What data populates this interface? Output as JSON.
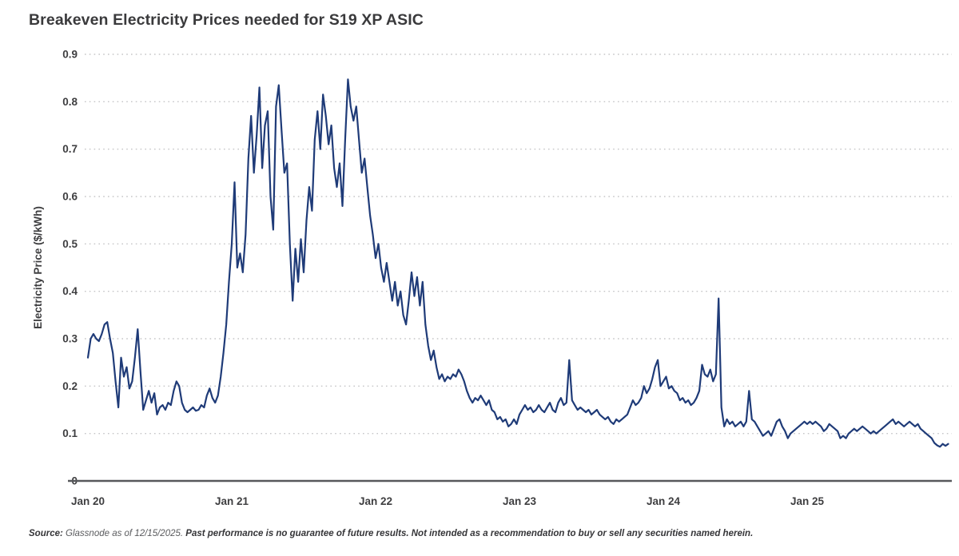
{
  "title": "Breakeven Electricity Prices needed for S19 XP ASIC",
  "source_note": {
    "prefix": "Source:",
    "attribution": " Glassnode as of 12/15/2025. ",
    "disclaimer": "Past performance is no guarantee of future results. Not intended as a recommendation to buy or sell any securities named herein."
  },
  "colors": {
    "line": "#1f3b78",
    "title_text": "#3a3a3c",
    "tick_label": "#3e3e40",
    "grid": "#c5c5c7",
    "axis": "#57585b"
  },
  "chart_data": {
    "type": "line",
    "title": "Breakeven Electricity Prices needed for S19 XP ASIC",
    "xlabel": "",
    "ylabel": "Electricity Price ($/kWh)",
    "ylim": [
      0,
      0.9
    ],
    "y_ticks": [
      0,
      0.1,
      0.2,
      0.3,
      0.4,
      0.5,
      0.6,
      0.7,
      0.8,
      0.9
    ],
    "x_tick_labels": [
      "Jan 20",
      "Jan 21",
      "Jan 22",
      "Jan 23",
      "Jan 24",
      "Jan 25"
    ],
    "x_start_label": "Jan 2020",
    "x_end_label": "Dec 2025",
    "points_per_year": 52,
    "grid": "horizontal-dotted",
    "legend_position": "none",
    "series": [
      {
        "name": "S19 XP ASIC breakeven electricity price",
        "unit": "$/kWh",
        "values": [
          0.26,
          0.3,
          0.31,
          0.3,
          0.295,
          0.31,
          0.33,
          0.335,
          0.3,
          0.27,
          0.21,
          0.155,
          0.26,
          0.22,
          0.24,
          0.195,
          0.21,
          0.26,
          0.32,
          0.23,
          0.15,
          0.17,
          0.19,
          0.165,
          0.185,
          0.14,
          0.155,
          0.16,
          0.15,
          0.165,
          0.16,
          0.19,
          0.21,
          0.2,
          0.165,
          0.15,
          0.145,
          0.15,
          0.155,
          0.148,
          0.15,
          0.16,
          0.155,
          0.18,
          0.195,
          0.175,
          0.165,
          0.18,
          0.22,
          0.27,
          0.33,
          0.42,
          0.5,
          0.63,
          0.45,
          0.48,
          0.44,
          0.52,
          0.68,
          0.77,
          0.65,
          0.73,
          0.83,
          0.66,
          0.75,
          0.78,
          0.6,
          0.53,
          0.79,
          0.835,
          0.74,
          0.65,
          0.67,
          0.5,
          0.38,
          0.49,
          0.42,
          0.51,
          0.44,
          0.55,
          0.62,
          0.57,
          0.72,
          0.78,
          0.7,
          0.815,
          0.77,
          0.71,
          0.75,
          0.66,
          0.62,
          0.67,
          0.58,
          0.72,
          0.847,
          0.79,
          0.76,
          0.79,
          0.72,
          0.65,
          0.68,
          0.62,
          0.56,
          0.52,
          0.47,
          0.5,
          0.45,
          0.42,
          0.46,
          0.42,
          0.38,
          0.42,
          0.37,
          0.4,
          0.35,
          0.33,
          0.38,
          0.44,
          0.39,
          0.43,
          0.37,
          0.42,
          0.33,
          0.285,
          0.255,
          0.275,
          0.24,
          0.215,
          0.225,
          0.21,
          0.22,
          0.215,
          0.225,
          0.22,
          0.235,
          0.225,
          0.21,
          0.19,
          0.175,
          0.165,
          0.175,
          0.17,
          0.18,
          0.17,
          0.16,
          0.17,
          0.15,
          0.145,
          0.13,
          0.135,
          0.125,
          0.13,
          0.115,
          0.12,
          0.13,
          0.12,
          0.14,
          0.15,
          0.16,
          0.15,
          0.155,
          0.145,
          0.15,
          0.16,
          0.15,
          0.145,
          0.155,
          0.165,
          0.15,
          0.145,
          0.165,
          0.175,
          0.16,
          0.165,
          0.255,
          0.17,
          0.16,
          0.15,
          0.155,
          0.15,
          0.145,
          0.15,
          0.14,
          0.145,
          0.15,
          0.14,
          0.135,
          0.13,
          0.135,
          0.125,
          0.12,
          0.13,
          0.125,
          0.13,
          0.135,
          0.14,
          0.155,
          0.17,
          0.16,
          0.165,
          0.175,
          0.2,
          0.185,
          0.195,
          0.215,
          0.24,
          0.255,
          0.2,
          0.21,
          0.22,
          0.195,
          0.2,
          0.19,
          0.185,
          0.17,
          0.175,
          0.165,
          0.17,
          0.16,
          0.165,
          0.175,
          0.19,
          0.245,
          0.225,
          0.22,
          0.235,
          0.21,
          0.225,
          0.385,
          0.155,
          0.115,
          0.13,
          0.12,
          0.125,
          0.115,
          0.12,
          0.125,
          0.115,
          0.125,
          0.19,
          0.13,
          0.125,
          0.115,
          0.105,
          0.095,
          0.1,
          0.105,
          0.095,
          0.11,
          0.125,
          0.13,
          0.115,
          0.105,
          0.09,
          0.1,
          0.105,
          0.11,
          0.115,
          0.12,
          0.125,
          0.12,
          0.125,
          0.12,
          0.125,
          0.12,
          0.115,
          0.105,
          0.11,
          0.12,
          0.115,
          0.11,
          0.105,
          0.09,
          0.095,
          0.09,
          0.1,
          0.105,
          0.11,
          0.105,
          0.11,
          0.115,
          0.11,
          0.105,
          0.1,
          0.105,
          0.1,
          0.105,
          0.11,
          0.115,
          0.12,
          0.125,
          0.13,
          0.12,
          0.125,
          0.12,
          0.115,
          0.12,
          0.125,
          0.12,
          0.115,
          0.12,
          0.11,
          0.105,
          0.1,
          0.095,
          0.09,
          0.08,
          0.075,
          0.072,
          0.078,
          0.074,
          0.078
        ]
      }
    ]
  }
}
